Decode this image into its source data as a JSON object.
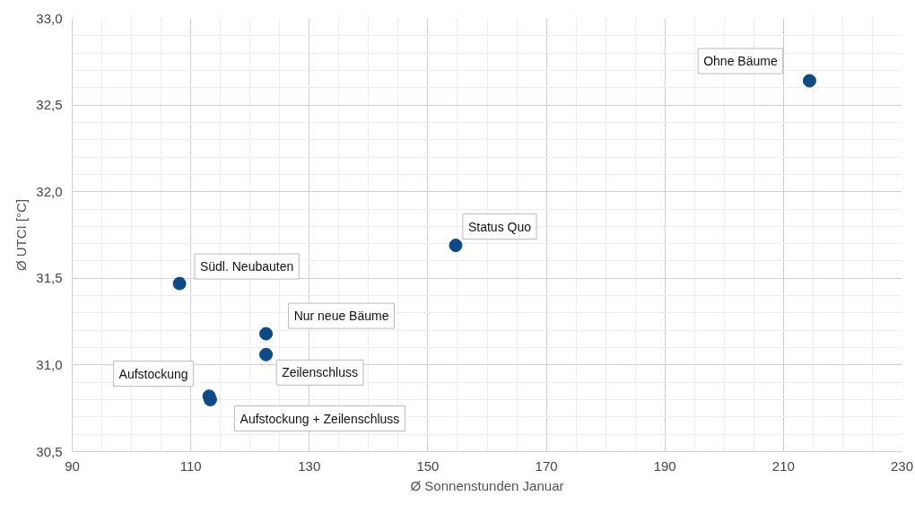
{
  "chart_data": {
    "type": "scatter",
    "xlabel": "Ø Sonnenstunden Januar",
    "ylabel": "Ø UTCI [°C]",
    "x": [
      214.4,
      154.7,
      108.1,
      122.7,
      122.7,
      113.1,
      113.3
    ],
    "series": [
      {
        "color": "#0e4a86",
        "values": [
          32.64,
          31.69,
          31.47,
          31.18,
          31.06,
          30.82,
          30.8
        ]
      }
    ],
    "xlim": [
      90,
      230
    ],
    "xticks": [
      90,
      110,
      130,
      150,
      170,
      190,
      210,
      230
    ],
    "ylim": [
      30.5,
      33.0
    ],
    "yticks": [
      {
        "value": 30.5,
        "label": "30,5"
      },
      {
        "value": 31.0,
        "label": "31,0"
      },
      {
        "value": 31.5,
        "label": "31,5"
      },
      {
        "value": 32.0,
        "label": "32,0"
      },
      {
        "value": 32.5,
        "label": "32,5"
      },
      {
        "value": 33.0,
        "label": "33,0"
      }
    ],
    "grid": true,
    "marker": "circle",
    "annotations": [
      {
        "text": "Ohne Bäume",
        "x": 214.4,
        "y": 32.64
      },
      {
        "text": "Status Quo",
        "x": 154.7,
        "y": 31.69
      },
      {
        "text": "Südl. Neubauten",
        "x": 108.1,
        "y": 31.47
      },
      {
        "text": "Nur neue Bäume",
        "x": 122.7,
        "y": 31.18
      },
      {
        "text": "Zeilenschluss",
        "x": 122.7,
        "y": 31.06
      },
      {
        "text": "Aufstockung",
        "x": 113.1,
        "y": 30.82
      },
      {
        "text": "Aufstockung + Zeilenschluss",
        "x": 113.3,
        "y": 30.8
      }
    ]
  }
}
